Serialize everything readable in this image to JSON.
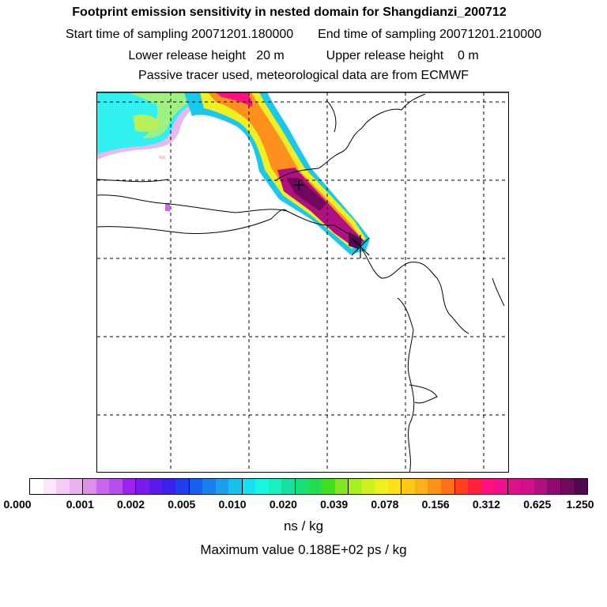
{
  "title": {
    "line1": "Footprint emission sensitivity in nested domain for Shangdianzi_200712",
    "start_label": "Start time of sampling 20071201.180000",
    "end_label": "End time of sampling 20071201.210000",
    "lower_label": "Lower release height   20 m",
    "upper_label": "Upper release height    0 m",
    "line4": "Passive tracer used, meteorological data are from ECMWF"
  },
  "colorbar": {
    "ticks": [
      "0.000",
      "0.001",
      "0.002",
      "0.005",
      "0.010",
      "0.020",
      "0.039",
      "0.078",
      "0.156",
      "0.312",
      "0.625",
      "1.250"
    ],
    "colors": [
      "#ffffff",
      "#fbe6fb",
      "#f5ccf5",
      "#eeb0f0",
      "#e08fe8",
      "#cc66ee",
      "#b84dee",
      "#9d22ee",
      "#7a1aee",
      "#5a1aee",
      "#3a20ee",
      "#2040ee",
      "#1a60ee",
      "#1a80ee",
      "#18a0ee",
      "#18c0f0",
      "#18e0f0",
      "#18f8e0",
      "#18f0c0",
      "#18e0a0",
      "#18e078",
      "#20e050",
      "#40e020",
      "#80e820",
      "#a8f020",
      "#d0f020",
      "#f0f020",
      "#ffe018",
      "#ffc818",
      "#ffb018",
      "#ff9018",
      "#ff7018",
      "#ff4020",
      "#ff2040",
      "#ff1080",
      "#f01090",
      "#e0108a",
      "#d0108a",
      "#b01080",
      "#900870",
      "#700860",
      "#500850"
    ],
    "unit": "ns / kg"
  },
  "max_value_text": "Maximum value  0.188E+02 ps / kg"
}
